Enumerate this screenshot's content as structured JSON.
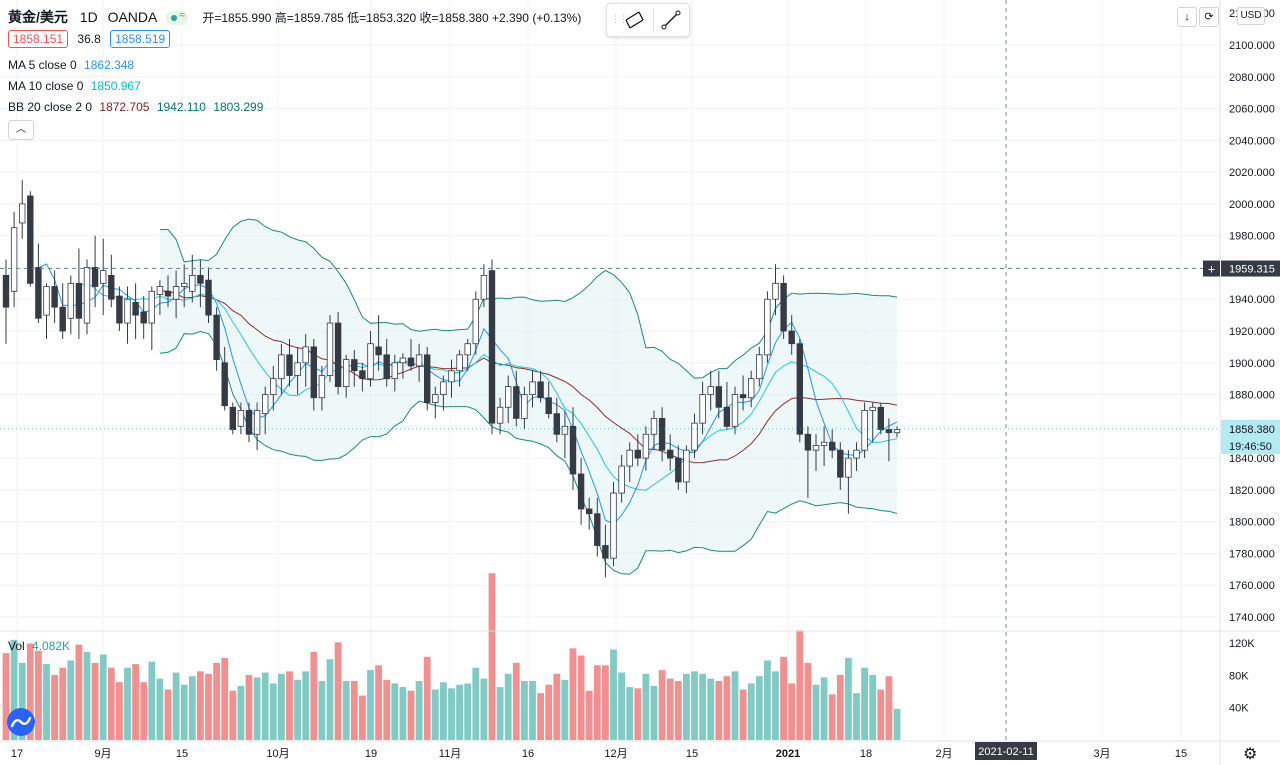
{
  "header": {
    "symbol": "黄金/美元",
    "interval": "1D",
    "exchange": "OANDA",
    "ohlc": "开=1855.990 高=1859.785 低=1853.320 收=1858.380 +2.390 (+0.13%)",
    "bid": "1858.151",
    "spread": "36.8",
    "ask": "1858.519"
  },
  "indicators": [
    {
      "label": "MA 5 close 0",
      "values": [
        "1862.348"
      ],
      "colors": [
        "#2196f3"
      ]
    },
    {
      "label": "MA 10 close 0",
      "values": [
        "1850.967"
      ],
      "colors": [
        "#00bcd4"
      ]
    },
    {
      "label": "BB 20 close 2 0",
      "values": [
        "1872.705",
        "1942.110",
        "1803.299"
      ],
      "colors": [
        "#7b1f1f",
        "#00796b",
        "#00796b"
      ]
    }
  ],
  "colors": {
    "up": "#26a69a",
    "down": "#ef5350",
    "candle_body_down": "#363a45",
    "volume_up": "#80cbc4",
    "volume_down": "#f48f8f",
    "bb_band": "#1e8a7a",
    "bb_fill": "#e0f2f1",
    "basis": "#8b2e2e",
    "ma5": "#2196f3",
    "ma10": "#26c6da",
    "accent": "#2962ff"
  },
  "currency_button": "USD",
  "price_axis": {
    "ticks": [
      "2100.000",
      "2080.000",
      "2060.000",
      "2040.000",
      "2020.000",
      "2000.000",
      "1980.000",
      "1960.000",
      "1940.000",
      "1920.000",
      "1900.000",
      "1880.000",
      "1860.000",
      "1840.000",
      "1820.000",
      "1800.000",
      "1780.000",
      "1760.000",
      "1740.000"
    ],
    "top_partial": "2120.000",
    "crosshair_label": "1959.315",
    "last_price_label": "1858.380",
    "countdown_label": "19:46:50"
  },
  "time_axis": {
    "labels": [
      "17",
      "9月",
      "15",
      "10月",
      "19",
      "11月",
      "16",
      "12月",
      "15",
      "2021",
      "18",
      "2月",
      "3月",
      "15"
    ],
    "crosshair_label": "2021-02-11"
  },
  "volume": {
    "label": "Vol",
    "value": "4.082K",
    "ticks": [
      "120K",
      "80K",
      "40K"
    ]
  },
  "chart_data": {
    "type": "candlestick",
    "title": "黄金/美元 · 1D · OANDA",
    "ylim": [
      1730,
      2120
    ],
    "series": [
      {
        "name": "OHLC",
        "ohlc": [
          [
            1955,
            1965,
            1912,
            1935
          ],
          [
            1945,
            1995,
            1935,
            1985
          ],
          [
            1988,
            2015,
            1978,
            2000
          ],
          [
            2005,
            2008,
            1948,
            1950
          ],
          [
            1960,
            1975,
            1925,
            1928
          ],
          [
            1930,
            1950,
            1915,
            1948
          ],
          [
            1948,
            1958,
            1925,
            1935
          ],
          [
            1935,
            1950,
            1915,
            1920
          ],
          [
            1928,
            1955,
            1918,
            1950
          ],
          [
            1950,
            1972,
            1915,
            1928
          ],
          [
            1925,
            1965,
            1918,
            1960
          ],
          [
            1960,
            1980,
            1935,
            1948
          ],
          [
            1950,
            1978,
            1930,
            1958
          ],
          [
            1955,
            1968,
            1935,
            1940
          ],
          [
            1942,
            1948,
            1920,
            1925
          ],
          [
            1925,
            1948,
            1912,
            1940
          ],
          [
            1938,
            1950,
            1915,
            1930
          ],
          [
            1932,
            1942,
            1915,
            1925
          ],
          [
            1925,
            1948,
            1908,
            1945
          ],
          [
            1943,
            1952,
            1930,
            1948
          ],
          [
            1945,
            1955,
            1935,
            1942
          ],
          [
            1940,
            1958,
            1928,
            1948
          ],
          [
            1948,
            1962,
            1935,
            1950
          ],
          [
            1945,
            1968,
            1938,
            1955
          ],
          [
            1955,
            1965,
            1935,
            1950
          ],
          [
            1952,
            1960,
            1925,
            1930
          ],
          [
            1930,
            1935,
            1895,
            1902
          ],
          [
            1900,
            1910,
            1870,
            1873
          ],
          [
            1872,
            1875,
            1855,
            1858
          ],
          [
            1860,
            1875,
            1855,
            1870
          ],
          [
            1870,
            1875,
            1850,
            1855
          ],
          [
            1855,
            1875,
            1845,
            1870
          ],
          [
            1868,
            1885,
            1855,
            1880
          ],
          [
            1880,
            1898,
            1870,
            1890
          ],
          [
            1890,
            1912,
            1880,
            1905
          ],
          [
            1905,
            1915,
            1885,
            1892
          ],
          [
            1892,
            1910,
            1880,
            1900
          ],
          [
            1900,
            1918,
            1885,
            1910
          ],
          [
            1910,
            1915,
            1870,
            1878
          ],
          [
            1878,
            1898,
            1870,
            1892
          ],
          [
            1892,
            1930,
            1888,
            1925
          ],
          [
            1925,
            1932,
            1880,
            1885
          ],
          [
            1885,
            1905,
            1878,
            1902
          ],
          [
            1902,
            1908,
            1885,
            1895
          ],
          [
            1895,
            1900,
            1882,
            1890
          ],
          [
            1890,
            1920,
            1885,
            1912
          ],
          [
            1910,
            1930,
            1895,
            1905
          ],
          [
            1905,
            1915,
            1885,
            1890
          ],
          [
            1890,
            1905,
            1882,
            1900
          ],
          [
            1900,
            1906,
            1890,
            1903
          ],
          [
            1903,
            1915,
            1895,
            1898
          ],
          [
            1898,
            1912,
            1888,
            1905
          ],
          [
            1905,
            1910,
            1870,
            1875
          ],
          [
            1875,
            1885,
            1865,
            1880
          ],
          [
            1880,
            1892,
            1870,
            1888
          ],
          [
            1888,
            1902,
            1878,
            1895
          ],
          [
            1895,
            1908,
            1885,
            1905
          ],
          [
            1905,
            1915,
            1895,
            1912
          ],
          [
            1912,
            1945,
            1905,
            1940
          ],
          [
            1940,
            1962,
            1935,
            1955
          ],
          [
            1958,
            1965,
            1855,
            1862
          ],
          [
            1862,
            1878,
            1855,
            1872
          ],
          [
            1872,
            1892,
            1862,
            1885
          ],
          [
            1885,
            1895,
            1860,
            1865
          ],
          [
            1865,
            1885,
            1858,
            1880
          ],
          [
            1880,
            1895,
            1872,
            1888
          ],
          [
            1888,
            1895,
            1875,
            1878
          ],
          [
            1878,
            1888,
            1865,
            1868
          ],
          [
            1868,
            1878,
            1850,
            1855
          ],
          [
            1855,
            1870,
            1840,
            1860
          ],
          [
            1860,
            1872,
            1820,
            1830
          ],
          [
            1830,
            1840,
            1798,
            1808
          ],
          [
            1808,
            1815,
            1795,
            1805
          ],
          [
            1805,
            1815,
            1778,
            1785
          ],
          [
            1785,
            1798,
            1765,
            1777
          ],
          [
            1777,
            1825,
            1772,
            1818
          ],
          [
            1818,
            1842,
            1812,
            1835
          ],
          [
            1835,
            1850,
            1825,
            1845
          ],
          [
            1845,
            1855,
            1835,
            1840
          ],
          [
            1840,
            1860,
            1832,
            1855
          ],
          [
            1855,
            1870,
            1845,
            1865
          ],
          [
            1865,
            1872,
            1838,
            1845
          ],
          [
            1845,
            1855,
            1832,
            1840
          ],
          [
            1840,
            1848,
            1820,
            1825
          ],
          [
            1825,
            1848,
            1818,
            1845
          ],
          [
            1845,
            1868,
            1840,
            1862
          ],
          [
            1862,
            1888,
            1855,
            1880
          ],
          [
            1880,
            1895,
            1870,
            1885
          ],
          [
            1885,
            1895,
            1865,
            1872
          ],
          [
            1872,
            1888,
            1858,
            1860
          ],
          [
            1860,
            1885,
            1855,
            1880
          ],
          [
            1880,
            1892,
            1870,
            1878
          ],
          [
            1878,
            1895,
            1872,
            1890
          ],
          [
            1890,
            1910,
            1885,
            1905
          ],
          [
            1905,
            1945,
            1900,
            1940
          ],
          [
            1940,
            1962,
            1930,
            1950
          ],
          [
            1950,
            1955,
            1915,
            1920
          ],
          [
            1920,
            1930,
            1905,
            1912
          ],
          [
            1912,
            1915,
            1850,
            1855
          ],
          [
            1855,
            1860,
            1815,
            1845
          ],
          [
            1845,
            1855,
            1832,
            1848
          ],
          [
            1848,
            1860,
            1835,
            1850
          ],
          [
            1850,
            1858,
            1840,
            1845
          ],
          [
            1845,
            1850,
            1820,
            1828
          ],
          [
            1828,
            1845,
            1805,
            1840
          ],
          [
            1840,
            1850,
            1832,
            1845
          ],
          [
            1845,
            1875,
            1840,
            1870
          ],
          [
            1870,
            1875,
            1850,
            1872
          ],
          [
            1872,
            1875,
            1855,
            1858
          ],
          [
            1858,
            1865,
            1838,
            1856
          ],
          [
            1856,
            1860,
            1853,
            1858
          ]
        ]
      },
      {
        "name": "MA 5 close 0"
      },
      {
        "name": "MA 10 close 0"
      },
      {
        "name": "BB 20 close 2 0"
      }
    ]
  }
}
